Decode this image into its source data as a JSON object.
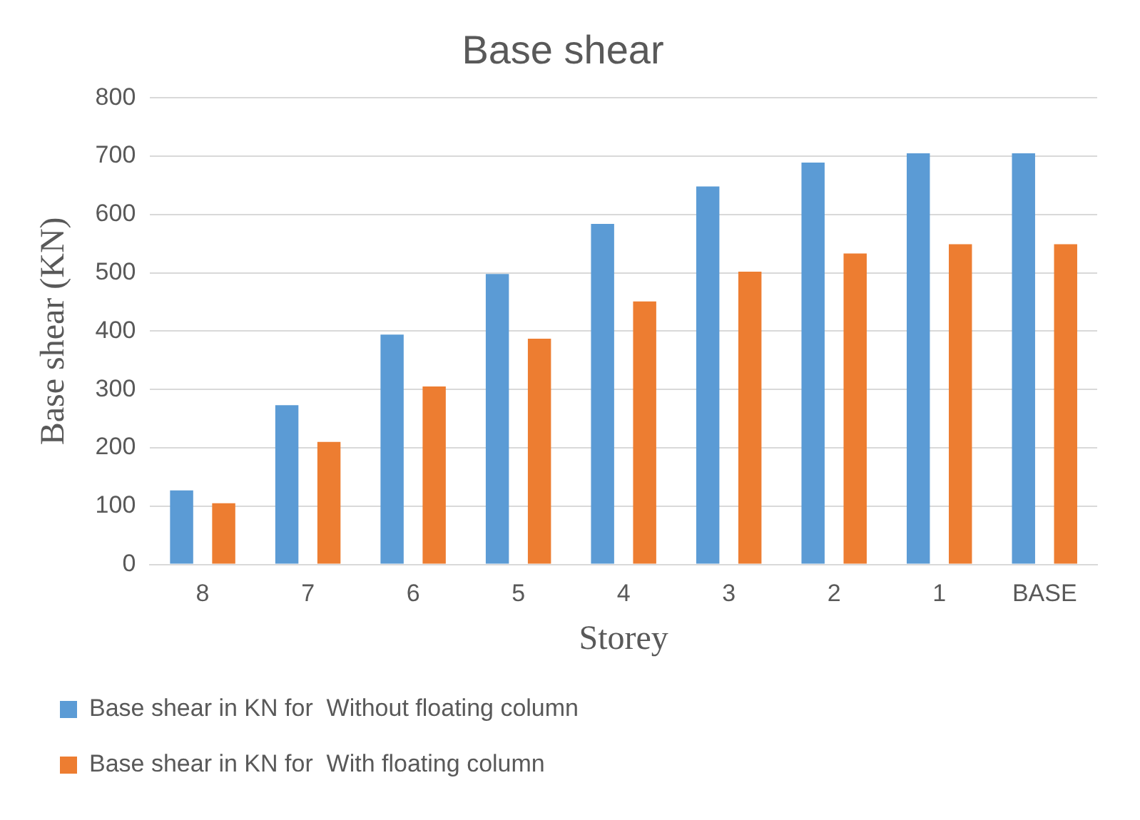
{
  "chart_data": {
    "type": "bar",
    "title": "Base shear",
    "xlabel": "Storey",
    "ylabel": "Base shear (KN)",
    "categories": [
      "8",
      "7",
      "6",
      "5",
      "4",
      "3",
      "2",
      "1",
      "BASE"
    ],
    "series": [
      {
        "name": "Base shear in KN for  Without floating column",
        "color": "#5b9bd5",
        "values": [
          127,
          273,
          394,
          498,
          584,
          648,
          689,
          705,
          705
        ]
      },
      {
        "name": "Base shear in KN for  With floating column",
        "color": "#ed7d31",
        "values": [
          105,
          210,
          305,
          387,
          451,
          502,
          533,
          549,
          549
        ]
      }
    ],
    "ylim": [
      0,
      800
    ],
    "yticks": [
      0,
      100,
      200,
      300,
      400,
      500,
      600,
      700,
      800
    ],
    "grid": "y",
    "legend": "bottom"
  }
}
